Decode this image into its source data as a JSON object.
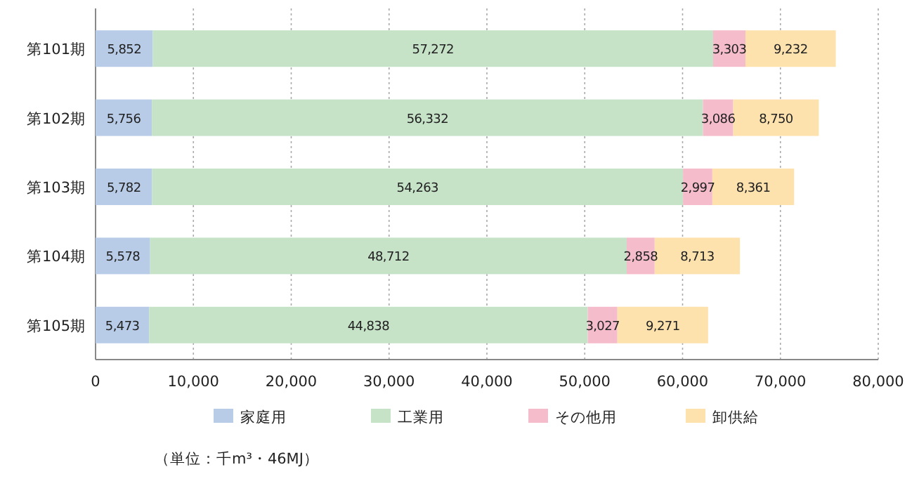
{
  "chart_data": {
    "type": "bar",
    "orientation": "horizontal",
    "stacked": true,
    "categories": [
      "第101期",
      "第102期",
      "第103期",
      "第104期",
      "第105期"
    ],
    "series": [
      {
        "name": "家庭用",
        "color": "#b8cce8",
        "values": [
          5852,
          5756,
          5782,
          5578,
          5473
        ],
        "value_labels": [
          "5,852",
          "5,756",
          "5,782",
          "5,578",
          "5,473"
        ]
      },
      {
        "name": "工業用",
        "color": "#c6e3c8",
        "values": [
          57272,
          56332,
          54263,
          48712,
          44838
        ],
        "value_labels": [
          "57,272",
          "56,332",
          "54,263",
          "48,712",
          "44,838"
        ]
      },
      {
        "name": "その他用",
        "color": "#f5bccb",
        "values": [
          3303,
          3086,
          2997,
          2858,
          3027
        ],
        "value_labels": [
          "3,303",
          "3,086",
          "2,997",
          "2,858",
          "3,027"
        ]
      },
      {
        "name": "卸供給",
        "color": "#fde2ae",
        "values": [
          9232,
          8750,
          8361,
          8713,
          9271
        ],
        "value_labels": [
          "9,232",
          "8,750",
          "8,361",
          "8,713",
          "9,271"
        ]
      }
    ],
    "xlim": [
      0,
      80000
    ],
    "xticks": [
      0,
      {
        "value": 10000,
        "label": "10,000"
      },
      {
        "value": 20000,
        "label": "20,000"
      },
      {
        "value": 30000,
        "label": "30,000"
      },
      {
        "value": 40000,
        "label": "40,000"
      },
      {
        "value": 50000,
        "label": "50,000"
      },
      {
        "value": 60000,
        "label": "60,000"
      },
      {
        "value": 70000,
        "label": "70,000"
      },
      {
        "value": 80000,
        "label": "80,000"
      }
    ],
    "grid": "x",
    "legend": "bottom",
    "annotations": [
      "（単位：千m³・46MJ）"
    ]
  }
}
